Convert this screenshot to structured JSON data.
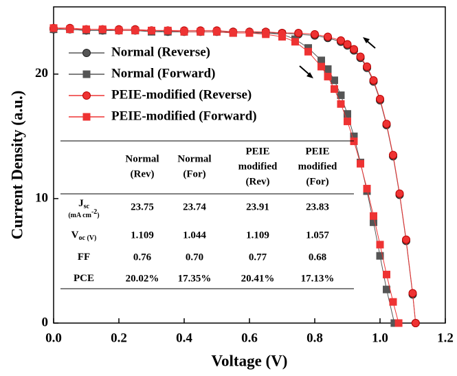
{
  "chart_data": {
    "type": "line",
    "xlabel": "Voltage (V)",
    "ylabel": "Current Density (a.u.)",
    "xlim": [
      0,
      1.2
    ],
    "ylim": [
      0,
      25.4
    ],
    "xticks": [
      {
        "value": 0,
        "label": "0.0"
      },
      0.2,
      0.4,
      0.6,
      0.8,
      {
        "value": 1,
        "label": "1.0"
      },
      1.2
    ],
    "yticks": [
      0,
      10,
      20
    ],
    "series": [
      {
        "name": "Normal (Reverse)",
        "color": "#555555",
        "marker": "circle",
        "x": [
          0,
          0.05,
          0.1,
          0.15,
          0.2,
          0.25,
          0.3,
          0.35,
          0.4,
          0.45,
          0.5,
          0.55,
          0.6,
          0.65,
          0.7,
          0.75,
          0.8,
          0.84,
          0.88,
          0.9,
          0.92,
          0.94,
          0.96,
          0.98,
          1.0,
          1.02,
          1.04,
          1.06,
          1.08,
          1.1,
          1.109
        ],
        "values": [
          23.6,
          23.6,
          23.5,
          23.5,
          23.5,
          23.5,
          23.5,
          23.4,
          23.4,
          23.4,
          23.4,
          23.4,
          23.4,
          23.3,
          23.3,
          23.2,
          23.1,
          22.9,
          22.6,
          22.3,
          21.9,
          21.3,
          20.5,
          19.4,
          17.9,
          15.9,
          13.4,
          10.3,
          6.6,
          2.3,
          0
        ]
      },
      {
        "name": "Normal (Forward)",
        "color": "#555555",
        "marker": "square",
        "x": [
          0,
          0.05,
          0.1,
          0.15,
          0.2,
          0.25,
          0.3,
          0.35,
          0.4,
          0.45,
          0.5,
          0.55,
          0.6,
          0.65,
          0.7,
          0.74,
          0.78,
          0.82,
          0.84,
          0.86,
          0.88,
          0.9,
          0.92,
          0.94,
          0.96,
          0.98,
          1.0,
          1.02,
          1.044
        ],
        "values": [
          23.6,
          23.6,
          23.5,
          23.5,
          23.5,
          23.5,
          23.4,
          23.4,
          23.4,
          23.4,
          23.4,
          23.3,
          23.3,
          23.3,
          23.2,
          22.8,
          22.1,
          21.1,
          20.4,
          19.5,
          18.3,
          16.8,
          15.0,
          12.9,
          10.6,
          8.1,
          5.4,
          2.7,
          0
        ]
      },
      {
        "name": "PEIE-modified (Reverse)",
        "color": "#ee3333",
        "marker": "circle",
        "x": [
          0,
          0.05,
          0.1,
          0.15,
          0.2,
          0.25,
          0.3,
          0.35,
          0.4,
          0.45,
          0.5,
          0.55,
          0.6,
          0.65,
          0.7,
          0.75,
          0.8,
          0.84,
          0.88,
          0.9,
          0.92,
          0.94,
          0.96,
          0.98,
          1.0,
          1.02,
          1.04,
          1.06,
          1.08,
          1.1,
          1.109
        ],
        "values": [
          23.7,
          23.7,
          23.6,
          23.6,
          23.6,
          23.6,
          23.5,
          23.5,
          23.5,
          23.5,
          23.5,
          23.4,
          23.4,
          23.4,
          23.3,
          23.3,
          23.2,
          23.0,
          22.7,
          22.4,
          22.0,
          21.4,
          20.6,
          19.5,
          18.0,
          16.0,
          13.5,
          10.4,
          6.7,
          2.4,
          0
        ]
      },
      {
        "name": "PEIE-modified (Forward)",
        "color": "#ee3333",
        "marker": "square",
        "x": [
          0,
          0.05,
          0.1,
          0.15,
          0.2,
          0.25,
          0.3,
          0.35,
          0.4,
          0.45,
          0.5,
          0.55,
          0.6,
          0.65,
          0.7,
          0.74,
          0.78,
          0.82,
          0.84,
          0.86,
          0.88,
          0.9,
          0.92,
          0.94,
          0.96,
          0.98,
          1.0,
          1.02,
          1.04,
          1.057
        ],
        "values": [
          23.7,
          23.6,
          23.6,
          23.6,
          23.5,
          23.5,
          23.5,
          23.5,
          23.4,
          23.4,
          23.4,
          23.3,
          23.3,
          23.2,
          23.0,
          22.6,
          21.8,
          20.6,
          19.8,
          18.8,
          17.6,
          16.2,
          14.6,
          12.8,
          10.8,
          8.6,
          6.3,
          3.9,
          1.7,
          0
        ]
      }
    ]
  },
  "table": {
    "header": [
      [
        "Normal",
        "(Rev)"
      ],
      [
        "Normal",
        "(For)"
      ],
      [
        "PEIE",
        "modified",
        "(Rev)"
      ],
      [
        "PEIE",
        "modified",
        "(For)"
      ]
    ],
    "rows": [
      {
        "label": {
          "symbol": "J",
          "subscript": "sc",
          "unit": "(mA cm",
          "exponent": "-2",
          "close": ")"
        },
        "cells": [
          "23.75",
          "23.74",
          "23.91",
          "23.83"
        ]
      },
      {
        "label": {
          "symbol": "V",
          "subscript": "oc (V)"
        },
        "cells": [
          "1.109",
          "1.044",
          "1.109",
          "1.057"
        ]
      },
      {
        "label": {
          "symbol": "FF"
        },
        "cells": [
          "0.76",
          "0.70",
          "0.77",
          "0.68"
        ]
      },
      {
        "label": {
          "symbol": "PCE"
        },
        "cells": [
          "20.02%",
          "17.35%",
          "20.41%",
          "17.13%"
        ]
      }
    ]
  }
}
